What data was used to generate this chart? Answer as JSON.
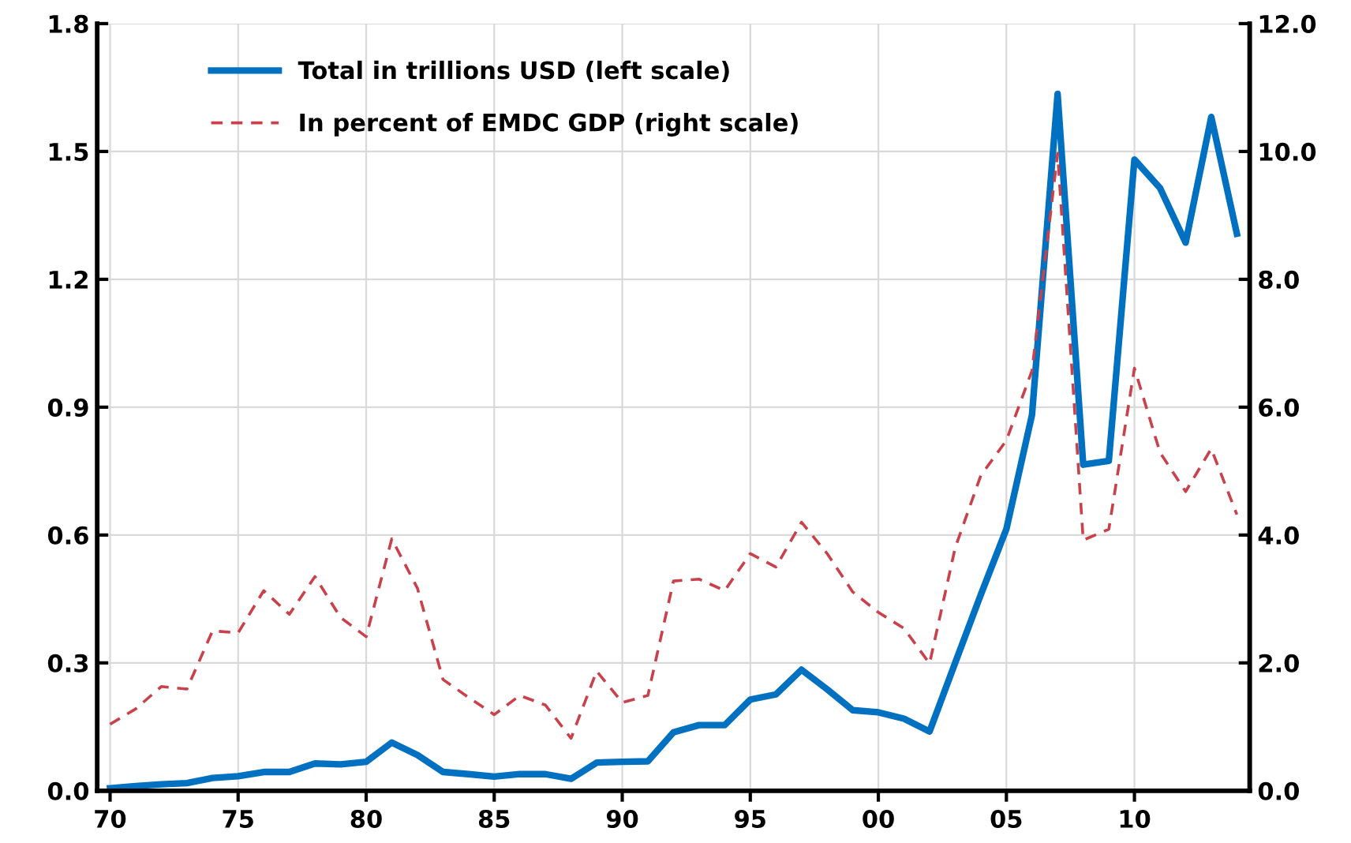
{
  "chart_data": {
    "type": "line",
    "x": [
      1970,
      1971,
      1972,
      1973,
      1974,
      1975,
      1976,
      1977,
      1978,
      1979,
      1980,
      1981,
      1982,
      1983,
      1984,
      1985,
      1986,
      1987,
      1988,
      1989,
      1990,
      1991,
      1992,
      1993,
      1994,
      1995,
      1996,
      1997,
      1998,
      1999,
      2000,
      2001,
      2002,
      2003,
      2004,
      2005,
      2006,
      2007,
      2008,
      2009,
      2010,
      2011,
      2012,
      2013,
      2014
    ],
    "series": [
      {
        "name": "Total in trillions USD (left scale)",
        "color": "#0070c0",
        "line_style": "solid",
        "values": [
          0.006,
          0.011,
          0.015,
          0.018,
          0.03,
          0.034,
          0.044,
          0.044,
          0.064,
          0.062,
          0.068,
          0.113,
          0.084,
          0.044,
          0.039,
          0.033,
          0.039,
          0.039,
          0.028,
          0.066,
          0.068,
          0.069,
          0.137,
          0.154,
          0.154,
          0.214,
          0.226,
          0.284,
          0.238,
          0.189,
          0.184,
          0.169,
          0.139,
          0.3,
          0.46,
          0.614,
          0.882,
          1.635,
          0.765,
          0.774,
          1.481,
          1.414,
          1.286,
          1.581,
          1.307
        ]
      },
      {
        "name": "In percent of EMDC GDP (right scale)",
        "color": "#c8414b",
        "line_style": "dashed",
        "axis": "y2",
        "values": [
          1.04,
          1.28,
          1.63,
          1.59,
          2.5,
          2.47,
          3.13,
          2.76,
          3.35,
          2.71,
          2.41,
          3.94,
          3.17,
          1.74,
          1.46,
          1.19,
          1.49,
          1.34,
          0.82,
          1.87,
          1.38,
          1.49,
          3.28,
          3.31,
          3.13,
          3.71,
          3.5,
          4.2,
          3.71,
          3.11,
          2.79,
          2.54,
          1.99,
          3.8,
          4.93,
          5.48,
          6.57,
          9.97,
          3.92,
          4.09,
          6.61,
          5.29,
          4.68,
          5.35,
          4.32
        ]
      }
    ],
    "xlim": [
      1969.5,
      2014.5
    ],
    "xticks": [
      {
        "value": 1970,
        "label": "70"
      },
      {
        "value": 1975,
        "label": "75"
      },
      {
        "value": 1980,
        "label": "80"
      },
      {
        "value": 1985,
        "label": "85"
      },
      {
        "value": 1990,
        "label": "90"
      },
      {
        "value": 1995,
        "label": "95"
      },
      {
        "value": 2000,
        "label": "00"
      },
      {
        "value": 2005,
        "label": "05"
      },
      {
        "value": 2010,
        "label": "10"
      }
    ],
    "ylim": [
      0,
      1.8
    ],
    "yticks": [
      {
        "value": 0,
        "label": "0.0"
      },
      {
        "value": 0.3,
        "label": "0.3"
      },
      {
        "value": 0.6,
        "label": "0.6"
      },
      {
        "value": 0.9,
        "label": "0.9"
      },
      {
        "value": 1.2,
        "label": "1.2"
      },
      {
        "value": 1.5,
        "label": "1.5"
      },
      {
        "value": 1.8,
        "label": "1.8"
      }
    ],
    "y2lim": [
      0,
      12
    ],
    "y2ticks": [
      {
        "value": 0,
        "label": "0.0"
      },
      {
        "value": 2,
        "label": "2.0"
      },
      {
        "value": 4,
        "label": "4.0"
      },
      {
        "value": 6,
        "label": "6.0"
      },
      {
        "value": 8,
        "label": "8.0"
      },
      {
        "value": 10,
        "label": "10.0"
      },
      {
        "value": 12,
        "label": "12.0"
      }
    ],
    "grid": true,
    "legend": "top left",
    "marker": "none"
  }
}
